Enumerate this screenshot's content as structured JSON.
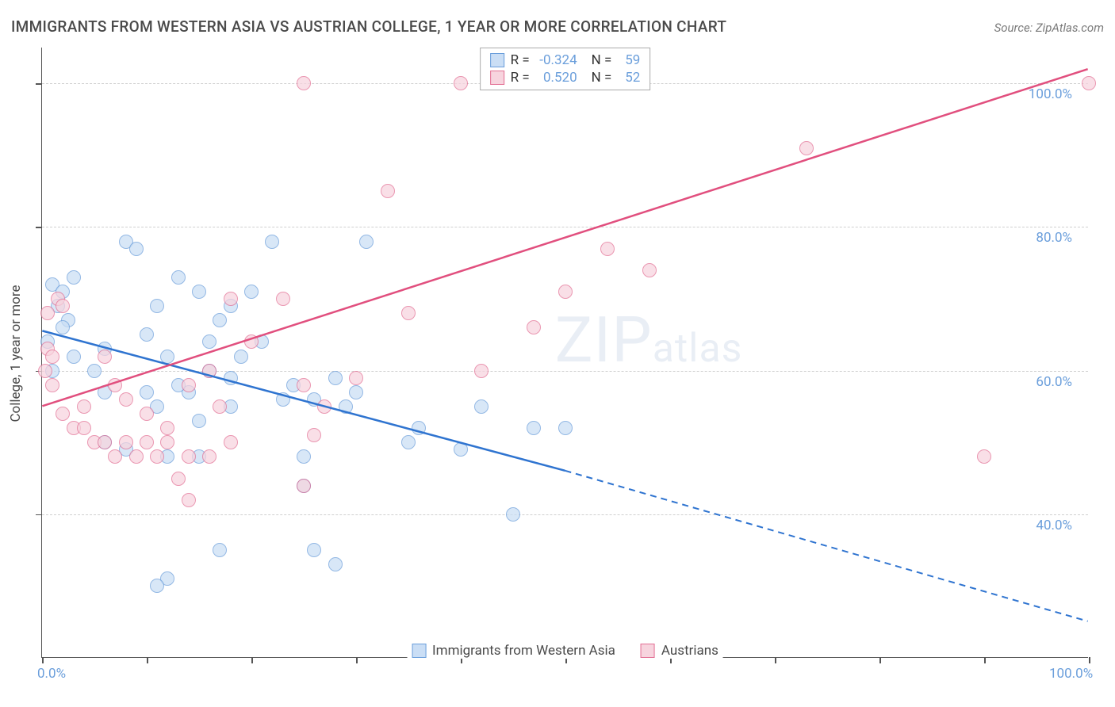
{
  "title": "IMMIGRANTS FROM WESTERN ASIA VS AUSTRIAN COLLEGE, 1 YEAR OR MORE CORRELATION CHART",
  "source": "Source: ZipAtlas.com",
  "y_axis_title": "College, 1 year or more",
  "watermark_main": "ZIP",
  "watermark_sub": "atlas",
  "chart": {
    "type": "scatter",
    "xlim": [
      0,
      100
    ],
    "ylim": [
      20,
      105
    ],
    "x_ticks": [
      0,
      10,
      20,
      30,
      40,
      50,
      60,
      70,
      80,
      90,
      100
    ],
    "y_ticks": [
      40,
      60,
      80,
      100
    ],
    "x_tick_labels": {
      "0": "0.0%",
      "100": "100.0%"
    },
    "y_tick_labels": {
      "40": "40.0%",
      "60": "60.0%",
      "80": "80.0%",
      "100": "100.0%"
    },
    "grid_color": "#d0d0d0",
    "background_color": "#ffffff",
    "series": [
      {
        "name": "Immigrants from Western Asia",
        "fill_color": "#cadef5",
        "stroke_color": "#6a9edb",
        "line_color": "#2f74d0",
        "trend": {
          "x1": 0,
          "y1": 65.5,
          "x2_solid": 50,
          "y2_solid": 46,
          "x2_dash": 100,
          "y2_dash": 25
        },
        "R": "-0.324",
        "N": "59",
        "points": [
          [
            1,
            72
          ],
          [
            1.5,
            69
          ],
          [
            2,
            71
          ],
          [
            2.5,
            67
          ],
          [
            3,
            62
          ],
          [
            3,
            73
          ],
          [
            0.5,
            64
          ],
          [
            1,
            60
          ],
          [
            2,
            66
          ],
          [
            6,
            63
          ],
          [
            8,
            78
          ],
          [
            9,
            77
          ],
          [
            10,
            65
          ],
          [
            11,
            69
          ],
          [
            12,
            62
          ],
          [
            13,
            73
          ],
          [
            15,
            71
          ],
          [
            16,
            64
          ],
          [
            18,
            69
          ],
          [
            18,
            59
          ],
          [
            20,
            71
          ],
          [
            21,
            64
          ],
          [
            22,
            78
          ],
          [
            6,
            57
          ],
          [
            5,
            60
          ],
          [
            10,
            57
          ],
          [
            11,
            55
          ],
          [
            12,
            48
          ],
          [
            14,
            57
          ],
          [
            15,
            48
          ],
          [
            16,
            60
          ],
          [
            18,
            55
          ],
          [
            23,
            56
          ],
          [
            24,
            58
          ],
          [
            25,
            48
          ],
          [
            26,
            56
          ],
          [
            28,
            59
          ],
          [
            29,
            55
          ],
          [
            30,
            57
          ],
          [
            31,
            78
          ],
          [
            17,
            35
          ],
          [
            28,
            33
          ],
          [
            25,
            44
          ],
          [
            12,
            31
          ],
          [
            26,
            35
          ],
          [
            6,
            50
          ],
          [
            8,
            49
          ],
          [
            35,
            50
          ],
          [
            40,
            49
          ],
          [
            36,
            52
          ],
          [
            42,
            55
          ],
          [
            45,
            40
          ],
          [
            47,
            52
          ],
          [
            50,
            52
          ],
          [
            11,
            30
          ],
          [
            15,
            53
          ],
          [
            13,
            58
          ],
          [
            17,
            67
          ],
          [
            19,
            62
          ]
        ]
      },
      {
        "name": "Austrians",
        "fill_color": "#f7d4de",
        "stroke_color": "#e36f94",
        "line_color": "#e14f7e",
        "trend": {
          "x1": 0,
          "y1": 55,
          "x2_solid": 100,
          "y2_solid": 102,
          "x2_dash": 100,
          "y2_dash": 102
        },
        "R": "0.520",
        "N": "52",
        "points": [
          [
            0.5,
            63
          ],
          [
            1,
            62
          ],
          [
            0.5,
            68
          ],
          [
            1.5,
            70
          ],
          [
            2,
            69
          ],
          [
            0.3,
            60
          ],
          [
            1,
            58
          ],
          [
            2,
            54
          ],
          [
            3,
            52
          ],
          [
            4,
            52
          ],
          [
            5,
            50
          ],
          [
            6,
            50
          ],
          [
            7,
            48
          ],
          [
            8,
            50
          ],
          [
            9,
            48
          ],
          [
            10,
            50
          ],
          [
            11,
            48
          ],
          [
            12,
            50
          ],
          [
            14,
            48
          ],
          [
            6,
            62
          ],
          [
            7,
            58
          ],
          [
            8,
            56
          ],
          [
            10,
            54
          ],
          [
            12,
            52
          ],
          [
            14,
            58
          ],
          [
            16,
            60
          ],
          [
            18,
            70
          ],
          [
            20,
            64
          ],
          [
            23,
            70
          ],
          [
            25,
            58
          ],
          [
            27,
            55
          ],
          [
            25,
            44
          ],
          [
            18,
            50
          ],
          [
            16,
            48
          ],
          [
            13,
            45
          ],
          [
            26,
            51
          ],
          [
            30,
            59
          ],
          [
            35,
            68
          ],
          [
            33,
            85
          ],
          [
            25,
            100
          ],
          [
            40,
            100
          ],
          [
            42,
            60
          ],
          [
            47,
            66
          ],
          [
            50,
            71
          ],
          [
            54,
            77
          ],
          [
            58,
            74
          ],
          [
            73,
            91
          ],
          [
            90,
            48
          ],
          [
            100,
            100
          ],
          [
            14,
            42
          ],
          [
            17,
            55
          ],
          [
            4,
            55
          ]
        ]
      }
    ]
  },
  "legend_bottom": [
    {
      "label": "Immigrants from Western Asia",
      "fill": "#cadef5",
      "stroke": "#6a9edb"
    },
    {
      "label": "Austrians",
      "fill": "#f7d4de",
      "stroke": "#e36f94"
    }
  ]
}
